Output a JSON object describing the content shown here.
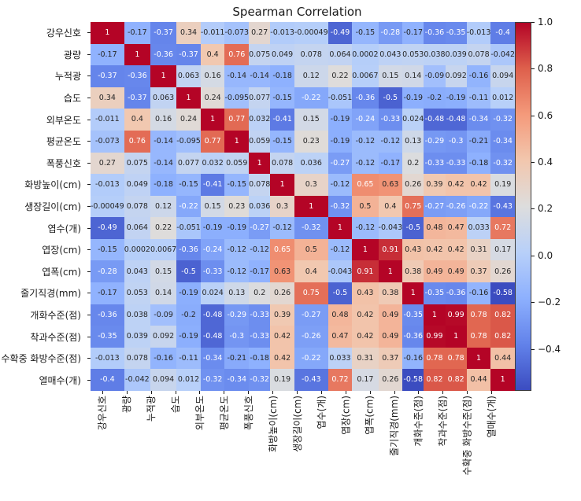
{
  "title": "Spearman Correlation",
  "chart_data": {
    "type": "heatmap",
    "title": "Spearman Correlation",
    "labels": [
      "강우신호",
      "광량",
      "누적광",
      "습도",
      "외부온도",
      "평균온도",
      "폭풍신호",
      "화방높이(cm)",
      "생장길이(cm)",
      "엽수(개)",
      "엽장(cm)",
      "엽폭(cm)",
      "줄기직경(mm)",
      "개화수준(점)",
      "착과수준(점)",
      "수확중 화방수준(점)",
      "열매수(개)"
    ],
    "matrix": [
      [
        1,
        -0.17,
        -0.37,
        0.34,
        -0.011,
        -0.073,
        0.27,
        -0.013,
        -0.00049,
        -0.49,
        -0.15,
        -0.28,
        -0.17,
        -0.36,
        -0.35,
        -0.013,
        -0.4
      ],
      [
        -0.17,
        1,
        -0.36,
        -0.37,
        0.4,
        0.76,
        0.075,
        0.049,
        0.078,
        0.064,
        0.0002,
        0.043,
        0.053,
        0.038,
        0.039,
        0.078,
        -0.042
      ],
      [
        -0.37,
        -0.36,
        1,
        0.063,
        0.16,
        -0.14,
        -0.14,
        -0.18,
        0.12,
        0.22,
        0.0067,
        0.15,
        0.14,
        -0.09,
        0.092,
        -0.16,
        0.094
      ],
      [
        0.34,
        -0.37,
        0.063,
        1,
        0.24,
        -0.095,
        0.077,
        -0.15,
        -0.22,
        -0.051,
        -0.36,
        -0.5,
        -0.19,
        -0.2,
        -0.19,
        -0.11,
        0.012
      ],
      [
        -0.011,
        0.4,
        0.16,
        0.24,
        1,
        0.77,
        0.032,
        -0.41,
        0.15,
        -0.19,
        -0.24,
        -0.33,
        0.024,
        -0.48,
        -0.48,
        -0.34,
        -0.32
      ],
      [
        -0.073,
        0.76,
        -0.14,
        -0.095,
        0.77,
        1,
        0.059,
        -0.15,
        0.23,
        -0.19,
        -0.12,
        -0.12,
        0.13,
        -0.29,
        -0.3,
        -0.21,
        -0.34
      ],
      [
        0.27,
        0.075,
        -0.14,
        0.077,
        0.032,
        0.059,
        1,
        0.078,
        0.036,
        -0.27,
        -0.12,
        -0.17,
        0.2,
        -0.33,
        -0.33,
        -0.18,
        -0.32
      ],
      [
        -0.013,
        0.049,
        -0.18,
        -0.15,
        -0.41,
        -0.15,
        0.078,
        1,
        0.3,
        -0.12,
        0.65,
        0.63,
        0.26,
        0.39,
        0.42,
        0.42,
        0.19
      ],
      [
        -0.00049,
        0.078,
        0.12,
        -0.22,
        0.15,
        0.23,
        0.036,
        0.3,
        1,
        -0.32,
        0.5,
        0.4,
        0.75,
        -0.27,
        -0.26,
        -0.22,
        -0.43
      ],
      [
        -0.49,
        0.064,
        0.22,
        -0.051,
        -0.19,
        -0.19,
        -0.27,
        -0.12,
        -0.32,
        1,
        -0.12,
        -0.043,
        -0.5,
        0.48,
        0.47,
        0.033,
        0.72
      ],
      [
        -0.15,
        0.0002,
        0.0067,
        -0.36,
        -0.24,
        -0.12,
        -0.12,
        0.65,
        0.5,
        -0.12,
        1,
        0.91,
        0.43,
        0.42,
        0.42,
        0.31,
        0.17
      ],
      [
        -0.28,
        0.043,
        0.15,
        -0.5,
        -0.33,
        -0.12,
        -0.17,
        0.63,
        0.4,
        -0.043,
        0.91,
        1,
        0.38,
        0.49,
        0.49,
        0.37,
        0.26
      ],
      [
        -0.17,
        0.053,
        0.14,
        -0.19,
        0.024,
        0.13,
        0.2,
        0.26,
        0.75,
        -0.5,
        0.43,
        0.38,
        1,
        -0.35,
        -0.36,
        -0.16,
        -0.58
      ],
      [
        -0.36,
        0.038,
        -0.09,
        -0.2,
        -0.48,
        -0.29,
        -0.33,
        0.39,
        -0.27,
        0.48,
        0.42,
        0.49,
        -0.35,
        1,
        0.99,
        0.78,
        0.82
      ],
      [
        -0.35,
        0.039,
        0.092,
        -0.19,
        -0.48,
        -0.3,
        -0.33,
        0.42,
        -0.26,
        0.47,
        0.42,
        0.49,
        -0.36,
        0.99,
        1,
        0.78,
        0.82
      ],
      [
        -0.013,
        0.078,
        -0.16,
        -0.11,
        -0.34,
        -0.21,
        -0.18,
        0.42,
        -0.22,
        0.033,
        0.31,
        0.37,
        -0.16,
        0.78,
        0.78,
        1,
        0.44
      ],
      [
        -0.4,
        -0.042,
        0.094,
        0.012,
        -0.32,
        -0.34,
        -0.32,
        0.19,
        -0.43,
        0.72,
        0.17,
        0.26,
        -0.58,
        0.82,
        0.82,
        0.44,
        1
      ]
    ],
    "vmin": -0.58,
    "vmax": 1,
    "colormap": "coolwarm",
    "colormap_anchors": [
      "#3b4cc0",
      "#6282ea",
      "#8db0fe",
      "#b8d0f9",
      "#dddddd",
      "#f2c7ae",
      "#f49a7b",
      "#de604c",
      "#b40426"
    ],
    "colorbar_tick_labels": [
      "1.0",
      "0.8",
      "0.6",
      "0.4",
      "0.2",
      "0.0",
      "−0.2",
      "−0.4"
    ],
    "annotation_format": "2 significant digits",
    "legend_position": "right",
    "cell_text_colors": {
      "light_bg": "#262626",
      "dark_bg": "#ffffff"
    }
  }
}
